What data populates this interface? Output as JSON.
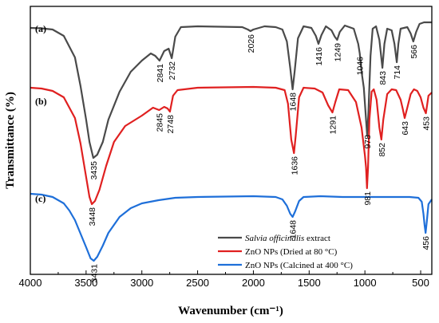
{
  "chart_data": {
    "type": "line",
    "xlabel": "Wavenumber (cm⁻¹)",
    "ylabel": "Transmittance (%)",
    "xlim": [
      4000,
      400
    ],
    "x_inverted": true,
    "x_ticks": [
      4000,
      3500,
      3000,
      2500,
      2000,
      1500,
      1000,
      500
    ],
    "y_ticks_shown": false,
    "grid": false,
    "legend_position": "bottom-right",
    "series": [
      {
        "name_prefix": "Salvia officinalis",
        "name_suffix": " extract",
        "color": "#4a4a4a",
        "panel_label": "(a)",
        "points": [
          [
            4000,
            25
          ],
          [
            3900,
            25.5
          ],
          [
            3800,
            27
          ],
          [
            3700,
            35
          ],
          [
            3600,
            62
          ],
          [
            3550,
            98
          ],
          [
            3500,
            140
          ],
          [
            3470,
            168
          ],
          [
            3435,
            188
          ],
          [
            3400,
            184
          ],
          [
            3350,
            168
          ],
          [
            3300,
            140
          ],
          [
            3200,
            105
          ],
          [
            3100,
            80
          ],
          [
            3000,
            66
          ],
          [
            2920,
            57
          ],
          [
            2880,
            60
          ],
          [
            2841,
            66
          ],
          [
            2800,
            54
          ],
          [
            2760,
            51
          ],
          [
            2732,
            63
          ],
          [
            2700,
            36
          ],
          [
            2650,
            24
          ],
          [
            2500,
            23
          ],
          [
            2100,
            24
          ],
          [
            2050,
            27
          ],
          [
            2026,
            29
          ],
          [
            2000,
            27
          ],
          [
            1900,
            23
          ],
          [
            1800,
            24
          ],
          [
            1740,
            27
          ],
          [
            1700,
            42
          ],
          [
            1670,
            75
          ],
          [
            1648,
            102
          ],
          [
            1630,
            80
          ],
          [
            1600,
            38
          ],
          [
            1550,
            23
          ],
          [
            1480,
            25
          ],
          [
            1440,
            35
          ],
          [
            1416,
            45
          ],
          [
            1390,
            34
          ],
          [
            1350,
            23
          ],
          [
            1300,
            28
          ],
          [
            1270,
            36
          ],
          [
            1249,
            40
          ],
          [
            1225,
            30
          ],
          [
            1180,
            22
          ],
          [
            1100,
            26
          ],
          [
            1060,
            45
          ],
          [
            1046,
            57
          ],
          [
            1030,
            80
          ],
          [
            1010,
            100
          ],
          [
            990,
            140
          ],
          [
            980,
            160
          ],
          [
            970,
            135
          ],
          [
            950,
            60
          ],
          [
            930,
            26
          ],
          [
            900,
            23
          ],
          [
            870,
            40
          ],
          [
            843,
            75
          ],
          [
            825,
            45
          ],
          [
            800,
            26
          ],
          [
            760,
            28
          ],
          [
            735,
            45
          ],
          [
            714,
            68
          ],
          [
            700,
            45
          ],
          [
            680,
            26
          ],
          [
            620,
            24
          ],
          [
            590,
            32
          ],
          [
            566,
            42
          ],
          [
            540,
            30
          ],
          [
            510,
            20
          ],
          [
            470,
            18
          ],
          [
            430,
            18
          ],
          [
            400,
            18
          ]
        ]
      },
      {
        "name_prefix": "ZnO NPs (Dried at 80 °C)",
        "name_suffix": "",
        "color": "#e02020",
        "panel_label": "(b)",
        "points": [
          [
            4000,
            100
          ],
          [
            3900,
            101
          ],
          [
            3800,
            104
          ],
          [
            3700,
            112
          ],
          [
            3600,
            138
          ],
          [
            3550,
            170
          ],
          [
            3500,
            212
          ],
          [
            3470,
            237
          ],
          [
            3448,
            246
          ],
          [
            3420,
            242
          ],
          [
            3380,
            228
          ],
          [
            3320,
            198
          ],
          [
            3250,
            168
          ],
          [
            3150,
            148
          ],
          [
            3000,
            135
          ],
          [
            2900,
            125
          ],
          [
            2845,
            128
          ],
          [
            2800,
            124
          ],
          [
            2770,
            126
          ],
          [
            2748,
            130
          ],
          [
            2720,
            110
          ],
          [
            2680,
            103
          ],
          [
            2500,
            100
          ],
          [
            2000,
            99
          ],
          [
            1800,
            100
          ],
          [
            1720,
            103
          ],
          [
            1690,
            120
          ],
          [
            1660,
            165
          ],
          [
            1636,
            182
          ],
          [
            1620,
            160
          ],
          [
            1590,
            112
          ],
          [
            1550,
            100
          ],
          [
            1450,
            101
          ],
          [
            1380,
            106
          ],
          [
            1330,
            122
          ],
          [
            1291,
            131
          ],
          [
            1265,
            118
          ],
          [
            1230,
            102
          ],
          [
            1150,
            103
          ],
          [
            1080,
            118
          ],
          [
            1030,
            150
          ],
          [
            1000,
            185
          ],
          [
            990,
            200
          ],
          [
            981,
            226
          ],
          [
            972,
            200
          ],
          [
            960,
            140
          ],
          [
            940,
            105
          ],
          [
            920,
            102
          ],
          [
            895,
            115
          ],
          [
            870,
            150
          ],
          [
            852,
            165
          ],
          [
            835,
            140
          ],
          [
            800,
            108
          ],
          [
            760,
            102
          ],
          [
            720,
            103
          ],
          [
            680,
            115
          ],
          [
            660,
            127
          ],
          [
            643,
            138
          ],
          [
            620,
            125
          ],
          [
            590,
            108
          ],
          [
            560,
            102
          ],
          [
            530,
            104
          ],
          [
            500,
            112
          ],
          [
            475,
            125
          ],
          [
            453,
            132
          ],
          [
            430,
            110
          ],
          [
            400,
            106
          ]
        ]
      },
      {
        "name_prefix": "ZnO NPs (Calcined at 400 °C)",
        "name_suffix": "",
        "color": "#1e6fd9",
        "panel_label": "(c)",
        "points": [
          [
            4000,
            233
          ],
          [
            3900,
            234
          ],
          [
            3800,
            237
          ],
          [
            3700,
            245
          ],
          [
            3650,
            254
          ],
          [
            3600,
            266
          ],
          [
            3550,
            283
          ],
          [
            3500,
            300
          ],
          [
            3460,
            314
          ],
          [
            3431,
            317
          ],
          [
            3400,
            312
          ],
          [
            3350,
            298
          ],
          [
            3300,
            282
          ],
          [
            3200,
            262
          ],
          [
            3100,
            251
          ],
          [
            3000,
            245
          ],
          [
            2850,
            241
          ],
          [
            2700,
            238
          ],
          [
            2500,
            237
          ],
          [
            2000,
            236
          ],
          [
            1800,
            237
          ],
          [
            1740,
            240
          ],
          [
            1700,
            248
          ],
          [
            1670,
            258
          ],
          [
            1648,
            262
          ],
          [
            1625,
            255
          ],
          [
            1590,
            242
          ],
          [
            1550,
            237
          ],
          [
            1400,
            236
          ],
          [
            1200,
            237
          ],
          [
            1000,
            237
          ],
          [
            800,
            237
          ],
          [
            600,
            237
          ],
          [
            520,
            238
          ],
          [
            490,
            243
          ],
          [
            475,
            258
          ],
          [
            465,
            272
          ],
          [
            456,
            282
          ],
          [
            445,
            268
          ],
          [
            430,
            246
          ],
          [
            400,
            240
          ]
        ]
      }
    ],
    "annotations": [
      {
        "text": "2841",
        "x": 2841,
        "series": 0
      },
      {
        "text": "2732",
        "x": 2732,
        "series": 0
      },
      {
        "text": "2026",
        "x": 2026,
        "series": 0
      },
      {
        "text": "1648",
        "x": 1648,
        "series": 0
      },
      {
        "text": "1416",
        "x": 1416,
        "series": 0
      },
      {
        "text": "1249",
        "x": 1249,
        "series": 0
      },
      {
        "text": "1046",
        "x": 1046,
        "series": 0
      },
      {
        "text": "843",
        "x": 843,
        "series": 0
      },
      {
        "text": "714",
        "x": 714,
        "series": 0
      },
      {
        "text": "566",
        "x": 566,
        "series": 0
      },
      {
        "text": "3435",
        "x": 3435,
        "series": 0
      },
      {
        "text": "2845",
        "x": 2845,
        "series": 1
      },
      {
        "text": "2748",
        "x": 2748,
        "series": 1
      },
      {
        "text": "1636",
        "x": 1636,
        "series": 1
      },
      {
        "text": "1291",
        "x": 1291,
        "series": 1
      },
      {
        "text": "978",
        "x": 978,
        "series": 0
      },
      {
        "text": "852",
        "x": 852,
        "series": 1
      },
      {
        "text": "643",
        "x": 643,
        "series": 1
      },
      {
        "text": "453",
        "x": 453,
        "series": 1
      },
      {
        "text": "3448",
        "x": 3448,
        "series": 1
      },
      {
        "text": "981",
        "x": 981,
        "series": 1
      },
      {
        "text": "1648",
        "x": 1648,
        "series": 2
      },
      {
        "text": "3431",
        "x": 3431,
        "series": 2
      },
      {
        "text": "456",
        "x": 456,
        "series": 2
      }
    ]
  }
}
